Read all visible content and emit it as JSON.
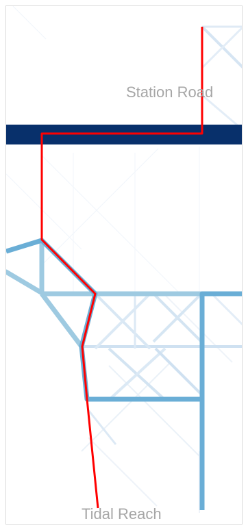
{
  "map": {
    "labels": {
      "origin": "Station Road",
      "destination": "Tidal Reach"
    },
    "colors": {
      "background": "#ffffff",
      "frame": "#d9d9d9",
      "faint_network": "#e6eef7",
      "light_network": "#c6dcef",
      "mid_network": "#9ecae1",
      "strong_network": "#6aaed6",
      "major_road": "#08306b",
      "route": "#ff0000",
      "label_text": "#a6a6a6"
    }
  }
}
